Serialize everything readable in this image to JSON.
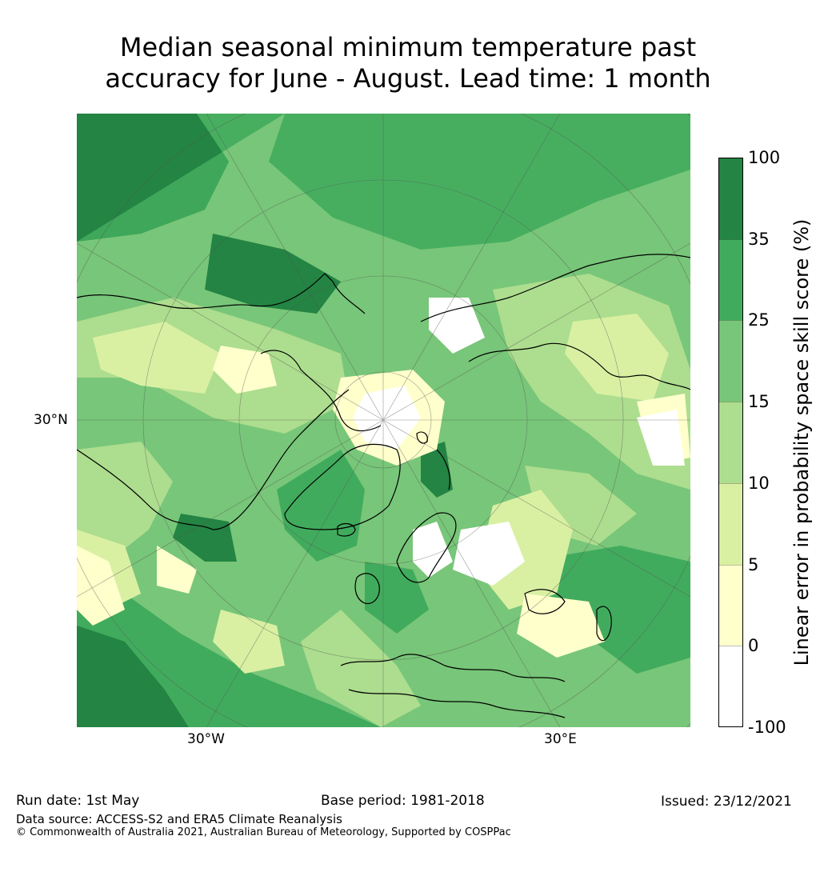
{
  "title": {
    "line1": "Median seasonal minimum temperature past",
    "line2": "accuracy for June - August. Lead time: 1 month"
  },
  "map": {
    "axis_labels": {
      "lat_30n": "30°N",
      "lon_30w": "30°W",
      "lon_30e": "30°E"
    },
    "palette": {
      "bin_neg100_0": "#ffffff",
      "bin_0_5": "#ffffcc",
      "bin_5_10": "#d9f0a3",
      "bin_10_15": "#addd8e",
      "bin_15_25": "#78c679",
      "bin_25_35": "#41ab5d",
      "bin_35_100": "#238443",
      "coastline": "#000000",
      "gridline": "#555555"
    }
  },
  "colorbar": {
    "label": "Linear error in probability space skill score (%)",
    "ticks": [
      "100",
      "35",
      "25",
      "15",
      "10",
      "5",
      "0",
      "-100"
    ],
    "bins": [
      {
        "range": "35-100",
        "color": "#238443"
      },
      {
        "range": "25-35",
        "color": "#41ab5d"
      },
      {
        "range": "15-25",
        "color": "#78c679"
      },
      {
        "range": "10-15",
        "color": "#addd8e"
      },
      {
        "range": "5-10",
        "color": "#d9f0a3"
      },
      {
        "range": "0-5",
        "color": "#ffffcc"
      },
      {
        "range": "-100-0",
        "color": "#ffffff"
      }
    ]
  },
  "footer": {
    "run_date": "Run date: 1st May",
    "base_period": "Base period: 1981-2018",
    "issued": "Issued: 23/12/2021",
    "data_source": "Data source: ACCESS-S2 and ERA5 Climate Reanalysis",
    "copyright": "© Commonwealth of Australia 2021, Australian Bureau of Meteorology, Supported by COSPPac"
  }
}
